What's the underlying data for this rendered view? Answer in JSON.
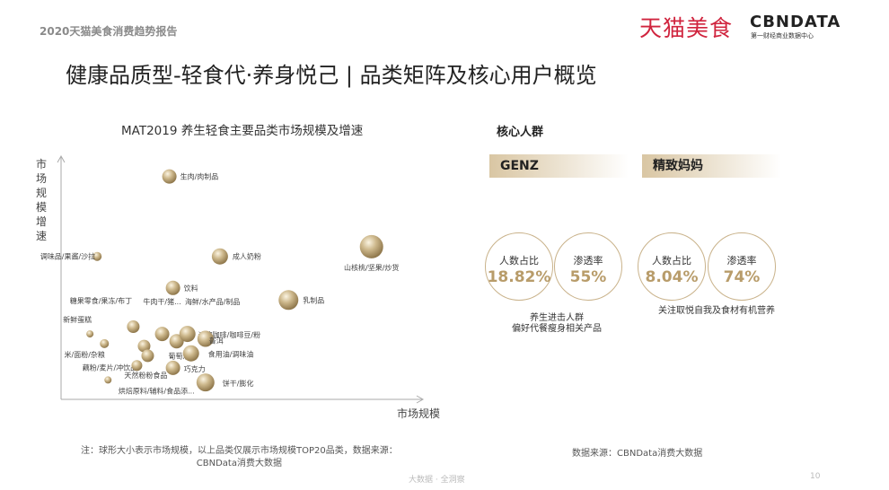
{
  "header": {
    "report": "2020天猫美食消费趋势报告",
    "logo_tmall": "天猫美食",
    "logo_cbn": "CBNDATA",
    "logo_cbn_sub": "第一财经商业数据中心",
    "title": "健康品质型-轻食代·养身悦己 | 品类矩阵及核心用户概览"
  },
  "chart_data": {
    "type": "scatter",
    "title": "MAT2019 养生轻食主要品类市场规模及增速",
    "xlabel": "市场规模",
    "ylabel": "市场规模增速",
    "note": "bubble size indicates market size; axes unscaled (relative estimates 0-100)",
    "xlim": [
      0,
      100
    ],
    "ylim": [
      0,
      100
    ],
    "grid": false,
    "color": "#c9b48a",
    "points": [
      {
        "label": "生肉/肉制品",
        "x": 30,
        "y": 92,
        "size": 8
      },
      {
        "label": "调味品/果酱/沙拉",
        "x": 10,
        "y": 59,
        "size": 5
      },
      {
        "label": "成人奶粉",
        "x": 44,
        "y": 59,
        "size": 9
      },
      {
        "label": "山核桃/坚果/炒货",
        "x": 86,
        "y": 63,
        "size": 13
      },
      {
        "label": "饮料",
        "x": 31,
        "y": 46,
        "size": 8
      },
      {
        "label": "乳制品",
        "x": 63,
        "y": 41,
        "size": 11
      },
      {
        "label": "糖果零食/果冻/布丁",
        "x": 20,
        "y": 30,
        "size": 7
      },
      {
        "label": "新鲜蛋糕",
        "x": 8,
        "y": 27,
        "size": 4
      },
      {
        "label": "米/面粉/杂粮",
        "x": 12,
        "y": 23,
        "size": 5
      },
      {
        "label": "牛肉干/猪...",
        "x": 28,
        "y": 27,
        "size": 8
      },
      {
        "label": "海鲜/水产品/制品",
        "x": 32,
        "y": 24,
        "size": 8
      },
      {
        "label": "速溶咖啡/咖啡豆/粉",
        "x": 35,
        "y": 27,
        "size": 9
      },
      {
        "label": "普洱",
        "x": 40,
        "y": 25,
        "size": 9
      },
      {
        "label": "藕粉/麦片/冲饮品",
        "x": 23,
        "y": 22,
        "size": 7
      },
      {
        "label": "葡萄酒",
        "x": 24,
        "y": 18,
        "size": 7
      },
      {
        "label": "天然粉粉食品",
        "x": 21,
        "y": 14,
        "size": 6
      },
      {
        "label": "烘焙原料/辅料/食品添...",
        "x": 13,
        "y": 8,
        "size": 4
      },
      {
        "label": "巧克力",
        "x": 31,
        "y": 13,
        "size": 8
      },
      {
        "label": "食用油/调味油",
        "x": 36,
        "y": 19,
        "size": 9
      },
      {
        "label": "饼干/膨化",
        "x": 40,
        "y": 7,
        "size": 10
      }
    ]
  },
  "core": {
    "title": "核心人群",
    "groups": [
      {
        "name": "GENZ",
        "share_label": "人数占比",
        "share": "18.82%",
        "pen_label": "渗透率",
        "pen": "55%",
        "desc1": "养生进击人群",
        "desc2": "偏好代餐瘦身相关产品"
      },
      {
        "name": "精致妈妈",
        "share_label": "人数占比",
        "share": "8.04%",
        "pen_label": "渗透率",
        "pen": "74%",
        "desc1": "关注取悦自我及食材有机营养",
        "desc2": ""
      }
    ]
  },
  "footer": {
    "note1": "注：球形大小表示市场规模，以上品类仅展示市场规模TOP20品类，数据来源：",
    "note2": "CBNData消费大数据",
    "source": "数据来源：CBNData消费大数据",
    "slogan": "大数据 · 全洞察",
    "page": "10"
  }
}
